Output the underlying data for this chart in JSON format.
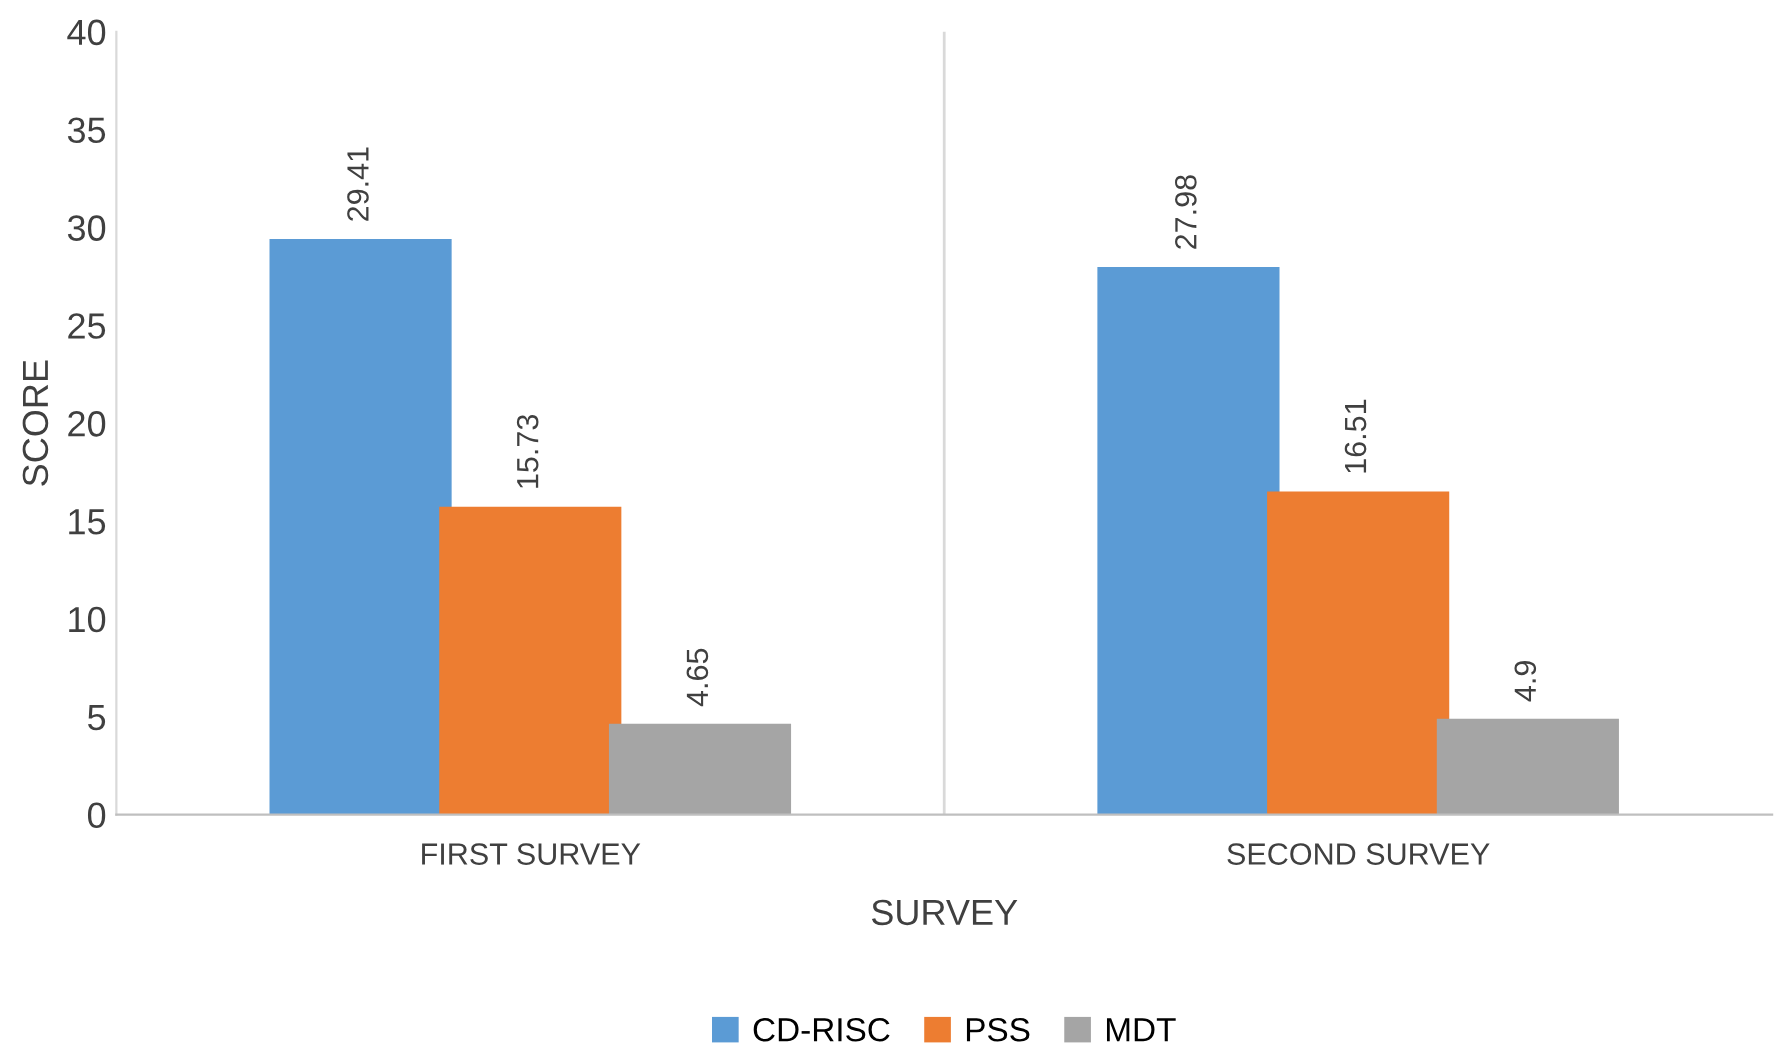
{
  "chart_data": {
    "type": "bar",
    "xlabel": "SURVEY",
    "ylabel": "SCORE",
    "categories": [
      "FIRST SURVEY",
      "SECOND SURVEY"
    ],
    "series": [
      {
        "name": "CD-RISC",
        "color": "#5b9bd5",
        "values": [
          29.41,
          27.98
        ]
      },
      {
        "name": "PSS",
        "color": "#ed7d31",
        "values": [
          15.73,
          16.51
        ]
      },
      {
        "name": "MDT",
        "color": "#a5a5a5",
        "values": [
          4.65,
          4.9
        ]
      }
    ],
    "ylim": [
      0,
      40
    ],
    "yticks": [
      0,
      5,
      10,
      15,
      20,
      25,
      30,
      35,
      40
    ],
    "grid": "x",
    "legend": "bottom",
    "data_labels": true
  }
}
